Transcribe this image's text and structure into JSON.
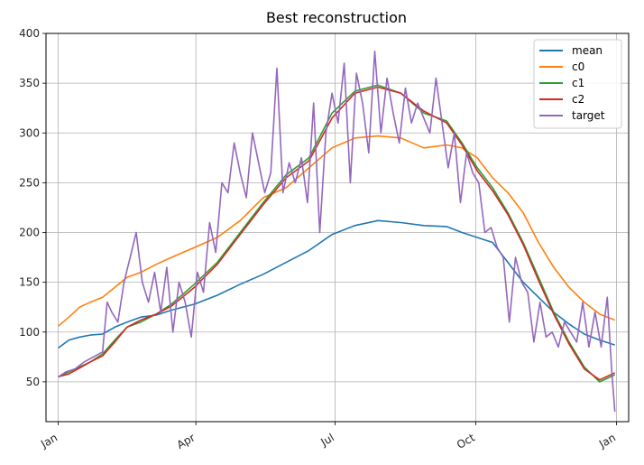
{
  "chart_data": {
    "type": "line",
    "title": "Best reconstruction",
    "xlabel": "",
    "ylabel": "",
    "x_ticks": [
      "Jan",
      "Apr",
      "Jul",
      "Oct",
      "Jan"
    ],
    "y_ticks": [
      50,
      100,
      150,
      200,
      250,
      300,
      350,
      400
    ],
    "ylim": [
      10,
      400
    ],
    "grid": true,
    "legend_position": "top-right",
    "x_unit": "day of year",
    "series": [
      {
        "name": "mean",
        "color": "#1f77b4",
        "x": [
          1,
          8,
          15,
          22,
          30,
          38,
          46,
          55,
          65,
          75,
          90,
          105,
          120,
          135,
          150,
          165,
          180,
          195,
          210,
          225,
          240,
          255,
          265,
          275,
          285,
          295,
          305,
          315,
          325,
          335,
          345,
          355,
          365
        ],
        "y": [
          84,
          92,
          95,
          97,
          98,
          105,
          110,
          115,
          117,
          122,
          128,
          137,
          148,
          158,
          170,
          182,
          198,
          207,
          212,
          210,
          207,
          206,
          200,
          195,
          190,
          170,
          150,
          135,
          120,
          108,
          98,
          92,
          87
        ]
      },
      {
        "name": "c0",
        "color": "#ff7f0e",
        "x": [
          1,
          8,
          15,
          22,
          30,
          38,
          46,
          55,
          65,
          75,
          90,
          105,
          120,
          135,
          150,
          165,
          180,
          195,
          210,
          225,
          240,
          255,
          265,
          275,
          285,
          295,
          305,
          315,
          325,
          335,
          345,
          355,
          365
        ],
        "y": [
          106,
          115,
          125,
          130,
          135,
          145,
          155,
          160,
          168,
          175,
          185,
          195,
          212,
          235,
          245,
          265,
          285,
          295,
          297,
          295,
          285,
          288,
          285,
          275,
          255,
          240,
          220,
          190,
          165,
          145,
          130,
          118,
          112
        ]
      },
      {
        "name": "c1",
        "color": "#2ca02c",
        "x": [
          1,
          8,
          15,
          22,
          30,
          38,
          46,
          55,
          65,
          75,
          90,
          105,
          120,
          135,
          150,
          165,
          180,
          195,
          210,
          225,
          240,
          255,
          265,
          275,
          285,
          295,
          305,
          315,
          325,
          335,
          345,
          355,
          365
        ],
        "y": [
          55,
          60,
          65,
          70,
          78,
          92,
          105,
          110,
          118,
          128,
          148,
          170,
          200,
          230,
          258,
          275,
          320,
          342,
          348,
          340,
          320,
          312,
          290,
          265,
          245,
          220,
          190,
          155,
          120,
          90,
          65,
          50,
          57
        ]
      },
      {
        "name": "c2",
        "color": "#d62728",
        "x": [
          1,
          8,
          15,
          22,
          30,
          38,
          46,
          55,
          65,
          75,
          90,
          105,
          120,
          135,
          150,
          165,
          180,
          195,
          210,
          225,
          240,
          255,
          265,
          275,
          285,
          295,
          305,
          315,
          325,
          335,
          345,
          355,
          365
        ],
        "y": [
          55,
          58,
          64,
          70,
          76,
          90,
          105,
          112,
          118,
          126,
          145,
          168,
          198,
          228,
          255,
          272,
          315,
          340,
          346,
          340,
          322,
          310,
          288,
          262,
          242,
          218,
          188,
          152,
          118,
          88,
          63,
          52,
          59
        ]
      },
      {
        "name": "target",
        "color": "#9467bd",
        "x": [
          1,
          6,
          12,
          18,
          24,
          30,
          33,
          36,
          40,
          44,
          48,
          52,
          56,
          60,
          64,
          68,
          72,
          76,
          80,
          84,
          88,
          92,
          96,
          100,
          104,
          108,
          112,
          116,
          120,
          124,
          128,
          132,
          136,
          140,
          144,
          148,
          152,
          156,
          160,
          164,
          168,
          172,
          176,
          180,
          184,
          188,
          192,
          196,
          200,
          204,
          208,
          212,
          216,
          220,
          224,
          228,
          232,
          236,
          240,
          244,
          248,
          252,
          256,
          260,
          264,
          268,
          272,
          276,
          280,
          284,
          288,
          292,
          296,
          300,
          304,
          308,
          312,
          316,
          320,
          324,
          328,
          332,
          336,
          340,
          344,
          348,
          352,
          356,
          360,
          363,
          365
        ],
        "y": [
          55,
          60,
          63,
          70,
          75,
          80,
          130,
          120,
          110,
          150,
          175,
          200,
          150,
          130,
          160,
          120,
          165,
          100,
          150,
          130,
          95,
          160,
          140,
          210,
          180,
          250,
          240,
          290,
          260,
          235,
          300,
          270,
          240,
          260,
          365,
          240,
          270,
          250,
          275,
          230,
          330,
          200,
          300,
          340,
          310,
          370,
          250,
          360,
          330,
          280,
          382,
          300,
          355,
          320,
          290,
          345,
          310,
          330,
          315,
          300,
          355,
          310,
          265,
          300,
          230,
          280,
          260,
          250,
          200,
          205,
          185,
          175,
          110,
          175,
          150,
          140,
          90,
          130,
          95,
          100,
          85,
          110,
          100,
          90,
          130,
          85,
          120,
          85,
          135,
          60,
          20
        ]
      }
    ]
  }
}
